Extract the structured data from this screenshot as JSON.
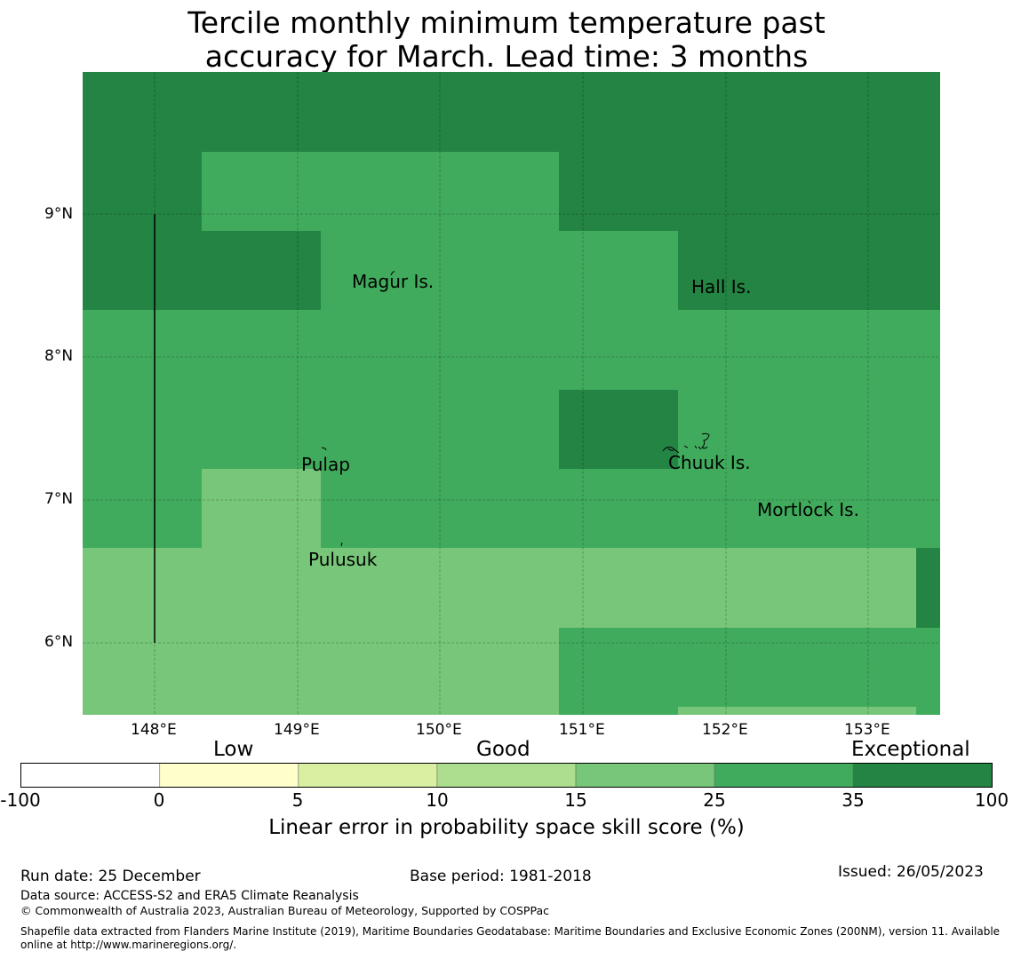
{
  "title": {
    "line1": "Tercile monthly minimum temperature past",
    "line2": "accuracy for March. Lead time: 3 months"
  },
  "map": {
    "lon_ticks": [
      "148°E",
      "149°E",
      "150°E",
      "151°E",
      "152°E",
      "153°E"
    ],
    "lat_ticks": [
      "9°N",
      "8°N",
      "7°N",
      "6°N"
    ],
    "places": [
      {
        "name": "Magur Is."
      },
      {
        "name": "Hall Is."
      },
      {
        "name": "Pulap"
      },
      {
        "name": "Chuuk Is."
      },
      {
        "name": "Mortlock Is."
      },
      {
        "name": "Pulusuk"
      }
    ],
    "extent": {
      "lon_min": 147.5,
      "lon_max": 153.5,
      "lat_min": 5.5,
      "lat_max": 10.0
    }
  },
  "colorbar": {
    "categories": [
      "Low",
      "Good",
      "Exceptional"
    ],
    "ticks": [
      "-100",
      "0",
      "5",
      "10",
      "15",
      "25",
      "35",
      "100"
    ],
    "colors": [
      "#ffffff",
      "#ffffcc",
      "#d9f0a3",
      "#addd8e",
      "#78c679",
      "#41ab5d",
      "#238443"
    ],
    "label": "Linear error in probability space skill score (%)"
  },
  "colors": {
    "exceptional": "#238443",
    "good_high": "#41ab5d",
    "good_low": "#78c679"
  },
  "footer": {
    "run_date": "Run date: 25 December",
    "base_period": "Base period: 1981-2018",
    "issued": "Issued: 26/05/2023",
    "data_source": "Data source: ACCESS-S2 and ERA5 Climate Reanalysis",
    "copyright": "© Commonwealth of Australia 2023, Australian Bureau of Meteorology, Supported by COSPPac",
    "shapefile": "Shapefile data extracted from Flanders Marine Institute (2019), Maritime Boundaries Geodatabase: Maritime Boundaries and Exclusive Economic Zones (200NM), version 11. Available online at http://www.marineregions.org/."
  }
}
